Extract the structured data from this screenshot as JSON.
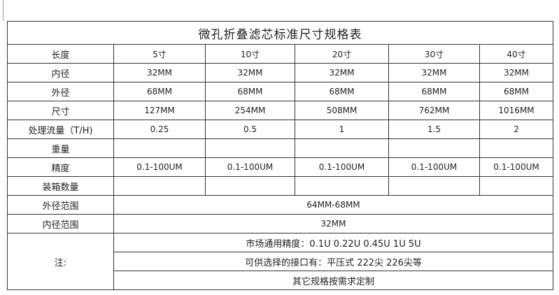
{
  "title": "微孔折叠滤芯标准尺寸规格表",
  "rows": [
    {
      "label": "长度",
      "cells": [
        "5寸",
        "10寸",
        "20寸",
        "30寸",
        "40寸"
      ]
    },
    {
      "label": "内径",
      "cells": [
        "32MM",
        "32MM",
        "32MM",
        "32MM",
        "32MM"
      ]
    },
    {
      "label": "外径",
      "cells": [
        "68MM",
        "68MM",
        "68MM",
        "68MM",
        "68MM"
      ]
    },
    {
      "label": "尺寸",
      "cells": [
        "127MM",
        "254MM",
        "508MM",
        "762MM",
        "1016MM"
      ]
    },
    {
      "label": "处理流量（T/H)",
      "cells": [
        "0.25",
        "0.5",
        "1",
        "1.5",
        "2"
      ]
    },
    {
      "label": "重量",
      "cells": [
        "",
        "",
        "",
        "",
        ""
      ]
    },
    {
      "label": "精度",
      "cells": [
        "0.1-100UM",
        "0.1-100UM",
        "0.1-100UM",
        "0.1-100UM",
        "0.1-100UM"
      ]
    },
    {
      "label": "装箱数量",
      "cells": [
        "",
        "",
        "",
        "",
        ""
      ]
    }
  ],
  "outer_range": {
    "label": "外径范围",
    "value": "64MM-68MM"
  },
  "inner_range": {
    "label": "内径范围",
    "value": "32MM"
  },
  "notes": {
    "label": "注:",
    "lines": [
      "市场通用精度：0.1U   0.22U   0.45U    1U    5U",
      "可供选择的接口有：平压式   222尖     226尖等",
      "其它规格按需求定制"
    ]
  }
}
